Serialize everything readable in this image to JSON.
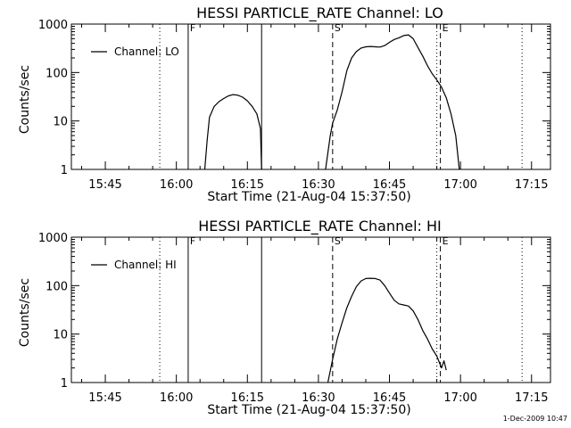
{
  "chart_data": [
    {
      "type": "line",
      "title": "HESSI PARTICLE_RATE Channel: LO",
      "xlabel": "Start Time (21-Aug-04 15:37:50)",
      "ylabel": "Counts/sec",
      "y_scale": "log",
      "ylim": [
        1,
        1000
      ],
      "xlim": [
        "15:37:50",
        "17:19:00"
      ],
      "x_ticks": [
        "15:45",
        "16:00",
        "16:15",
        "16:30",
        "16:45",
        "17:00",
        "17:15"
      ],
      "y_ticks": [
        "1",
        "10",
        "100",
        "1000"
      ],
      "legend": {
        "entries": [
          "Channel: LO"
        ],
        "placement": "top-left"
      },
      "markers": [
        {
          "time": "15:56:30",
          "style": "dotted",
          "label": ""
        },
        {
          "time": "16:02:30",
          "style": "solid",
          "label": "F"
        },
        {
          "time": "16:18:00",
          "style": "solid",
          "label": ""
        },
        {
          "time": "16:33:00",
          "style": "dashed",
          "label": "S"
        },
        {
          "time": "16:55:00",
          "style": "dotted",
          "label": ""
        },
        {
          "time": "16:55:45",
          "style": "dashed",
          "label": "E"
        },
        {
          "time": "17:13:00",
          "style": "dotted",
          "label": ""
        }
      ],
      "series": [
        {
          "name": "Channel: LO",
          "segments": [
            [
              [
                "16:06:00",
                1
              ],
              [
                "16:06:30",
                4
              ],
              [
                "16:07:00",
                12
              ],
              [
                "16:08:00",
                20
              ],
              [
                "16:09:00",
                25
              ],
              [
                "16:10:00",
                29
              ],
              [
                "16:11:00",
                33
              ],
              [
                "16:12:00",
                35
              ],
              [
                "16:13:00",
                34
              ],
              [
                "16:14:00",
                31
              ],
              [
                "16:15:00",
                26
              ],
              [
                "16:16:00",
                20
              ],
              [
                "16:17:00",
                14
              ],
              [
                "16:17:45",
                7
              ],
              [
                "16:18:00",
                1
              ]
            ],
            [
              [
                "16:31:30",
                1
              ],
              [
                "16:32:30",
                5
              ],
              [
                "16:33:00",
                9
              ],
              [
                "16:34:00",
                17
              ],
              [
                "16:35:00",
                40
              ],
              [
                "16:36:00",
                110
              ],
              [
                "16:37:00",
                200
              ],
              [
                "16:38:00",
                270
              ],
              [
                "16:39:00",
                320
              ],
              [
                "16:40:00",
                340
              ],
              [
                "16:41:00",
                345
              ],
              [
                "16:42:00",
                340
              ],
              [
                "16:43:00",
                335
              ],
              [
                "16:44:00",
                360
              ],
              [
                "16:45:00",
                420
              ],
              [
                "16:46:00",
                480
              ],
              [
                "16:47:00",
                520
              ],
              [
                "16:48:00",
                580
              ],
              [
                "16:49:00",
                600
              ],
              [
                "16:50:00",
                500
              ],
              [
                "16:51:00",
                330
              ],
              [
                "16:52:00",
                220
              ],
              [
                "16:53:00",
                140
              ],
              [
                "16:54:00",
                95
              ],
              [
                "16:55:00",
                70
              ],
              [
                "16:56:00",
                50
              ],
              [
                "16:57:00",
                30
              ],
              [
                "16:58:00",
                14
              ],
              [
                "16:59:00",
                5
              ],
              [
                "16:59:45",
                1
              ]
            ]
          ]
        }
      ]
    },
    {
      "type": "line",
      "title": "HESSI PARTICLE_RATE Channel: HI",
      "xlabel": "Start Time (21-Aug-04 15:37:50)",
      "ylabel": "Counts/sec",
      "y_scale": "log",
      "ylim": [
        1,
        1000
      ],
      "xlim": [
        "15:37:50",
        "17:19:00"
      ],
      "x_ticks": [
        "15:45",
        "16:00",
        "16:15",
        "16:30",
        "16:45",
        "17:00",
        "17:15"
      ],
      "y_ticks": [
        "1",
        "10",
        "100",
        "1000"
      ],
      "legend": {
        "entries": [
          "Channel: HI"
        ],
        "placement": "top-left"
      },
      "markers": [
        {
          "time": "15:56:30",
          "style": "dotted",
          "label": ""
        },
        {
          "time": "16:02:30",
          "style": "solid",
          "label": "F"
        },
        {
          "time": "16:18:00",
          "style": "solid",
          "label": ""
        },
        {
          "time": "16:33:00",
          "style": "dashed",
          "label": "S"
        },
        {
          "time": "16:55:00",
          "style": "dotted",
          "label": ""
        },
        {
          "time": "16:55:45",
          "style": "dashed",
          "label": "E"
        },
        {
          "time": "17:13:00",
          "style": "dotted",
          "label": ""
        }
      ],
      "series": [
        {
          "name": "Channel: HI",
          "segments": [
            [
              [
                "16:32:00",
                1
              ],
              [
                "16:33:00",
                3
              ],
              [
                "16:34:00",
                8
              ],
              [
                "16:35:00",
                17
              ],
              [
                "16:36:00",
                35
              ],
              [
                "16:37:00",
                60
              ],
              [
                "16:38:00",
                95
              ],
              [
                "16:39:00",
                125
              ],
              [
                "16:40:00",
                140
              ],
              [
                "16:41:00",
                142
              ],
              [
                "16:42:00",
                140
              ],
              [
                "16:43:00",
                130
              ],
              [
                "16:44:00",
                100
              ],
              [
                "16:45:00",
                70
              ],
              [
                "16:46:00",
                50
              ],
              [
                "16:47:00",
                42
              ],
              [
                "16:48:00",
                40
              ],
              [
                "16:49:00",
                38
              ],
              [
                "16:50:00",
                30
              ],
              [
                "16:51:00",
                20
              ],
              [
                "16:52:00",
                12
              ],
              [
                "16:53:00",
                8
              ],
              [
                "16:54:00",
                5
              ],
              [
                "16:55:00",
                3.5
              ],
              [
                "16:56:00",
                2
              ],
              [
                "16:56:30",
                2.8
              ],
              [
                "16:57:00",
                1.8
              ]
            ]
          ]
        }
      ]
    }
  ],
  "footer": {
    "timestamp": "1-Dec-2009 10:47"
  }
}
